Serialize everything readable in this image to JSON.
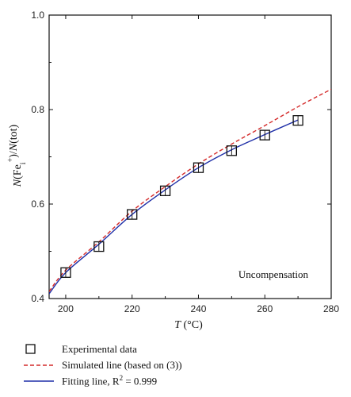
{
  "chart_data": {
    "type": "line",
    "xlim": [
      195,
      280
    ],
    "ylim": [
      0.4,
      1.0
    ],
    "x_ticks": [
      200,
      220,
      240,
      260,
      280
    ],
    "y_ticks": [
      0.4,
      0.6,
      0.8,
      1.0
    ],
    "x_tick_labels": [
      "200",
      "220",
      "240",
      "260",
      "280"
    ],
    "y_tick_labels": [
      "0.4",
      "0.6",
      "0.8",
      "1.0"
    ],
    "xlabel": {
      "main": "T",
      "unit": " (°C)"
    },
    "ylabel": {
      "n1": "N",
      "open1": "(Fe",
      "sub": "i",
      "sup": "+",
      "close1": ")/",
      "n2": "N",
      "tail": "(tot)"
    },
    "annotation": "Uncompensation",
    "grid": false,
    "legend_position": "below",
    "series": [
      {
        "name": "Experimental data",
        "kind": "scatter",
        "marker": "open-square",
        "color": "#111111",
        "x": [
          200,
          210,
          220,
          230,
          240,
          250,
          260,
          270
        ],
        "y": [
          0.455,
          0.51,
          0.578,
          0.628,
          0.677,
          0.713,
          0.746,
          0.777
        ]
      },
      {
        "name": "Simulated line (based on (3))",
        "kind": "line",
        "style": "dashed",
        "color": "#d42a2a",
        "x": [
          195,
          200,
          210,
          220,
          230,
          240,
          250,
          260,
          270,
          280
        ],
        "y": [
          0.415,
          0.46,
          0.52,
          0.585,
          0.637,
          0.685,
          0.727,
          0.766,
          0.806,
          0.843
        ]
      },
      {
        "name": "Fitting line, R",
        "name_sup": "2",
        "name_tail": " = 0.999",
        "kind": "line",
        "style": "solid",
        "color": "#1f2fa8",
        "x": [
          195,
          200,
          210,
          220,
          230,
          240,
          250,
          260,
          270
        ],
        "y": [
          0.41,
          0.455,
          0.515,
          0.578,
          0.63,
          0.677,
          0.715,
          0.747,
          0.778
        ]
      }
    ]
  }
}
